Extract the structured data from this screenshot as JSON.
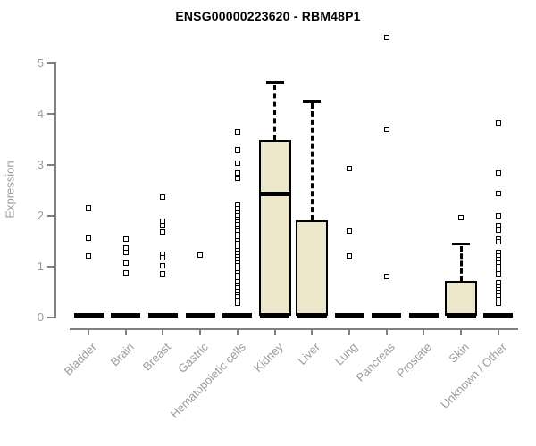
{
  "chart_data": {
    "type": "box",
    "title": "ENSG00000223620 - RBM48P1",
    "xlabel": "",
    "ylabel": "Expression",
    "ylim": [
      0,
      5.6
    ],
    "yticks": [
      0,
      1,
      2,
      3,
      4,
      5
    ],
    "grid": "off",
    "legend": "none",
    "box_fill_color": "#EDE8CC",
    "box_border_color": "#000000",
    "axis_color": "#808080",
    "tick_label_color": "#9b9b9b",
    "categories": [
      {
        "label": "Bladder",
        "q1": 0,
        "median": 0,
        "q3": 0,
        "whisker_low": 0,
        "whisker_high": 0,
        "outliers": [
          2.14,
          1.54,
          1.19
        ]
      },
      {
        "label": "Brain",
        "q1": 0,
        "median": 0,
        "q3": 0,
        "whisker_low": 0,
        "whisker_high": 0,
        "outliers": [
          1.53,
          1.35,
          1.26,
          1.05,
          0.86
        ]
      },
      {
        "label": "Breast",
        "q1": 0,
        "median": 0,
        "q3": 0,
        "whisker_low": 0,
        "whisker_high": 0,
        "outliers": [
          2.35,
          1.88,
          1.79,
          1.67,
          1.23,
          1.16,
          1.0,
          0.84
        ]
      },
      {
        "label": "Gastric",
        "q1": 0,
        "median": 0,
        "q3": 0,
        "whisker_low": 0,
        "whisker_high": 0,
        "outliers": [
          1.21
        ]
      },
      {
        "label": "Hematopoietic cells",
        "q1": 0,
        "median": 0,
        "q3": 0,
        "whisker_low": 0,
        "whisker_high": 0,
        "outliers": [
          3.63,
          3.28,
          3.02,
          2.82,
          2.72,
          2.19,
          2.12,
          2.05,
          1.98,
          1.92,
          1.86,
          1.8,
          1.74,
          1.68,
          1.62,
          1.56,
          1.5,
          1.44,
          1.38,
          1.3,
          1.24,
          1.18,
          1.12,
          1.06,
          1.0,
          0.92,
          0.86,
          0.8,
          0.74,
          0.68,
          0.62,
          0.56,
          0.5,
          0.44,
          0.38,
          0.32,
          0.26
        ]
      },
      {
        "label": "Kidney",
        "q1": 0,
        "median": 2.42,
        "q3": 3.47,
        "whisker_low": 0,
        "whisker_high": 4.61,
        "outliers": []
      },
      {
        "label": "Liver",
        "q1": 0,
        "median": 0,
        "q3": 1.9,
        "whisker_low": 0,
        "whisker_high": 4.25,
        "outliers": []
      },
      {
        "label": "Lung",
        "q1": 0,
        "median": 0,
        "q3": 0,
        "whisker_low": 0,
        "whisker_high": 0,
        "outliers": [
          2.91,
          1.68,
          1.19
        ]
      },
      {
        "label": "Pancreas",
        "q1": 0,
        "median": 0,
        "q3": 0,
        "whisker_low": 0,
        "whisker_high": 0,
        "outliers": [
          5.49,
          3.68,
          0.79
        ]
      },
      {
        "label": "Prostate",
        "q1": 0,
        "median": 0,
        "q3": 0,
        "whisker_low": 0,
        "whisker_high": 0,
        "outliers": []
      },
      {
        "label": "Skin",
        "q1": 0,
        "median": 0,
        "q3": 0.7,
        "whisker_low": 0,
        "whisker_high": 1.44,
        "outliers": [
          1.95
        ]
      },
      {
        "label": "Unknown / Other",
        "q1": 0,
        "median": 0,
        "q3": 0,
        "whisker_low": 0,
        "whisker_high": 0,
        "outliers": [
          3.81,
          2.82,
          2.42,
          1.98,
          1.79,
          1.7,
          1.53,
          1.47,
          1.26,
          1.19,
          1.12,
          1.05,
          0.98,
          0.91,
          0.84,
          0.67,
          0.6,
          0.53,
          0.47,
          0.4,
          0.33,
          0.27
        ]
      }
    ]
  }
}
